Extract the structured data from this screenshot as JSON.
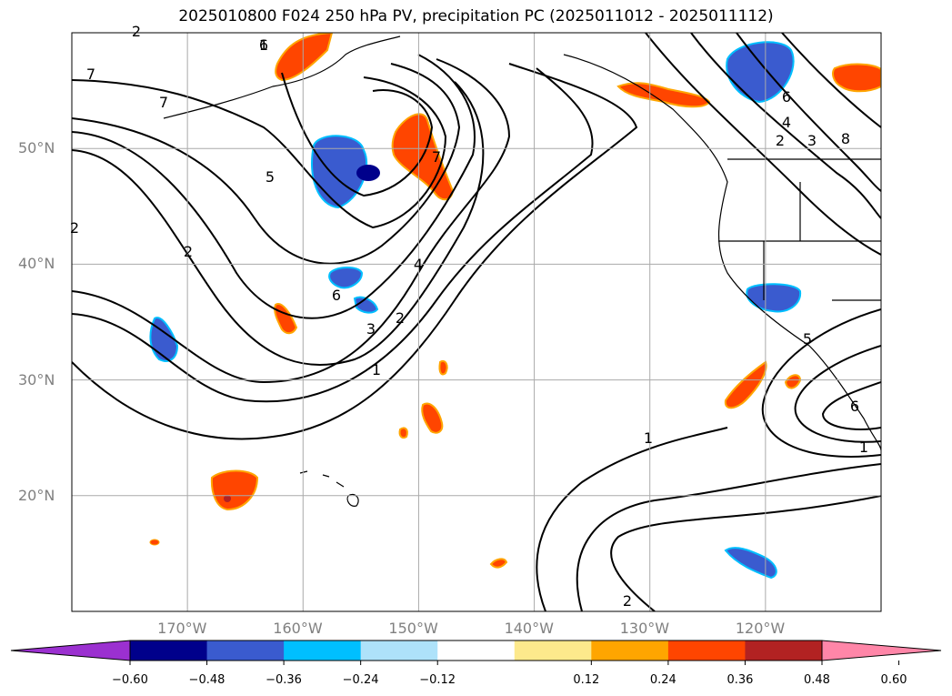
{
  "title": "2025010800 F024 250 hPa PV, precipitation PC (2025011012 - 2025011112)",
  "map": {
    "lon_range": [
      -180,
      -110
    ],
    "lat_range": [
      10,
      60
    ],
    "lat_ticks": [
      {
        "value": 50,
        "label": "50°N"
      },
      {
        "value": 40,
        "label": "40°N"
      },
      {
        "value": 30,
        "label": "30°N"
      },
      {
        "value": 20,
        "label": "20°N"
      }
    ],
    "lon_ticks": [
      {
        "value": -170,
        "label": "170°W"
      },
      {
        "value": -160,
        "label": "160°W"
      },
      {
        "value": -150,
        "label": "150°W"
      },
      {
        "value": -140,
        "label": "140°W"
      },
      {
        "value": -130,
        "label": "130°W"
      },
      {
        "value": -120,
        "label": "120°W"
      }
    ],
    "grid": true,
    "pv_contour_labels": [
      "7",
      "7",
      "6",
      "5",
      "2",
      "6",
      "4",
      "3",
      "2",
      "1",
      "1",
      "2",
      "7",
      "6",
      "4",
      "3",
      "2",
      "8",
      "2",
      "1",
      "6",
      "5",
      "1",
      "2"
    ]
  },
  "colorbar": {
    "ticks": [
      "−0.60",
      "−0.48",
      "−0.36",
      "−0.24",
      "−0.12",
      "0.12",
      "0.24",
      "0.36",
      "0.48",
      "0.60"
    ],
    "colors": [
      "#9b30d0",
      "#00008b",
      "#3a5bcf",
      "#00bfff",
      "#aee2fa",
      "#ffffff",
      "#fde98c",
      "#ffa500",
      "#ff4500",
      "#b22222",
      "#ff86a8"
    ]
  }
}
